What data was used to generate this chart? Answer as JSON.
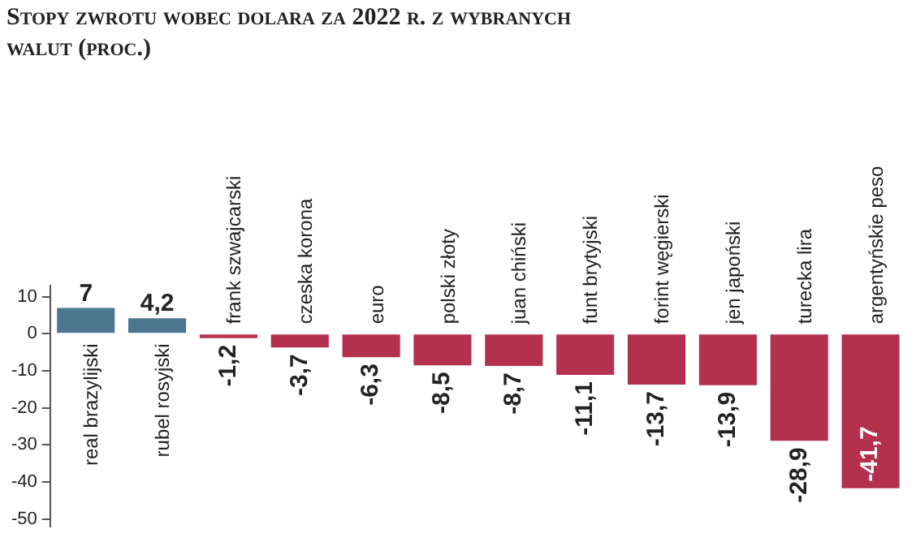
{
  "chart_data": {
    "type": "bar",
    "title": "Stopy zwrotu wobec dolara za 2022 r. z wybranych walut (proc.)",
    "categories": [
      "real brazylijski",
      "rubel rosyjski",
      "frank szwajcarski",
      "czeska korona",
      "euro",
      "polski złoty",
      "juan chiński",
      "funt brytyjski",
      "forint węgierski",
      "jen japoński",
      "turecka lira",
      "argentyńskie peso"
    ],
    "values": [
      7,
      4.2,
      -1.2,
      -3.7,
      -6.3,
      -8.5,
      -8.7,
      -11.1,
      -13.7,
      -13.9,
      -28.9,
      -41.7
    ],
    "colors": [
      "#4d7791",
      "#4d7791",
      "#b3314f",
      "#b3314f",
      "#b3314f",
      "#b3314f",
      "#b3314f",
      "#b3314f",
      "#b3314f",
      "#b3314f",
      "#b3314f",
      "#b3314f"
    ],
    "value_labels": [
      "7",
      "4,2",
      "-1,2",
      "-3,7",
      "-6,3",
      "-8,5",
      "-8,7",
      "-11,1",
      "-13,7",
      "-13,9",
      "-28,9",
      "-41,7"
    ],
    "ylim": [
      -52,
      13
    ],
    "yticks": [
      10,
      0,
      -10,
      -20,
      -30,
      -40,
      -50
    ],
    "grid": false
  }
}
